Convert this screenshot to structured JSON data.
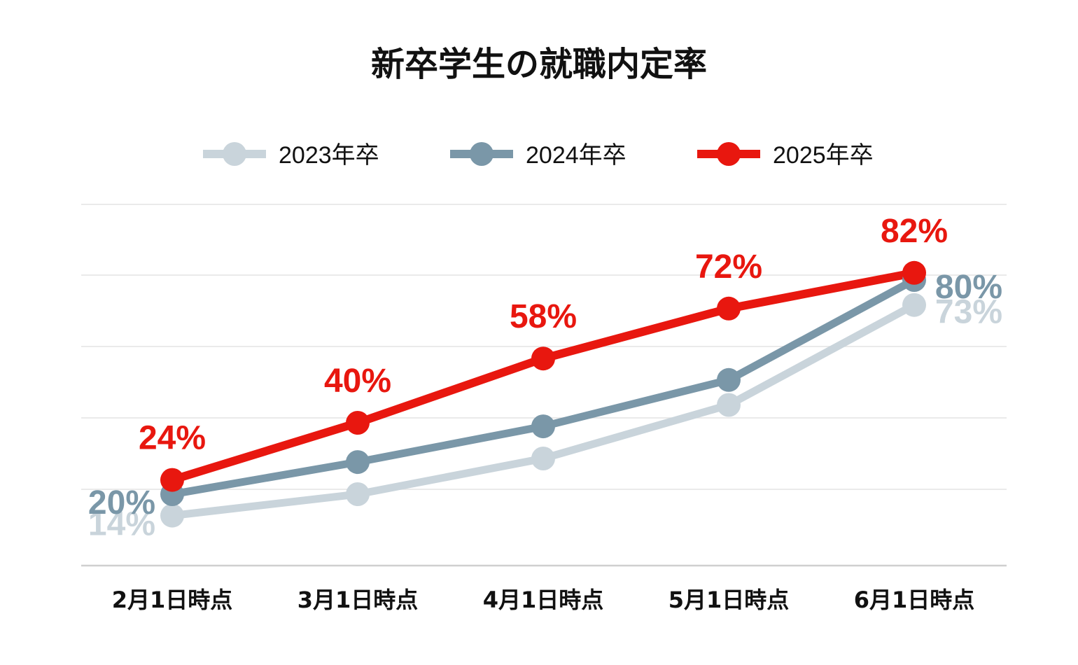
{
  "chart_data": {
    "type": "line",
    "title": "新卒学生の就職内定率",
    "categories": [
      "2月1日時点",
      "3月1日時点",
      "4月1日時点",
      "5月1日時点",
      "6月1日時点"
    ],
    "series": [
      {
        "name": "2023年卒",
        "color": "#c9d4db",
        "values": [
          14,
          20,
          30,
          45,
          73
        ],
        "labels": [
          "14%",
          "",
          "",
          "",
          "73%"
        ]
      },
      {
        "name": "2024年卒",
        "color": "#7a97a8",
        "values": [
          20,
          29,
          39,
          52,
          80
        ],
        "labels": [
          "20%",
          "",
          "",
          "",
          "80%"
        ]
      },
      {
        "name": "2025年卒",
        "color": "#e8170f",
        "values": [
          24,
          40,
          58,
          72,
          82
        ],
        "labels": [
          "24%",
          "40%",
          "58%",
          "72%",
          "82%"
        ]
      }
    ],
    "ylim": [
      0,
      100
    ],
    "grid": true,
    "legend_position": "top-center"
  }
}
